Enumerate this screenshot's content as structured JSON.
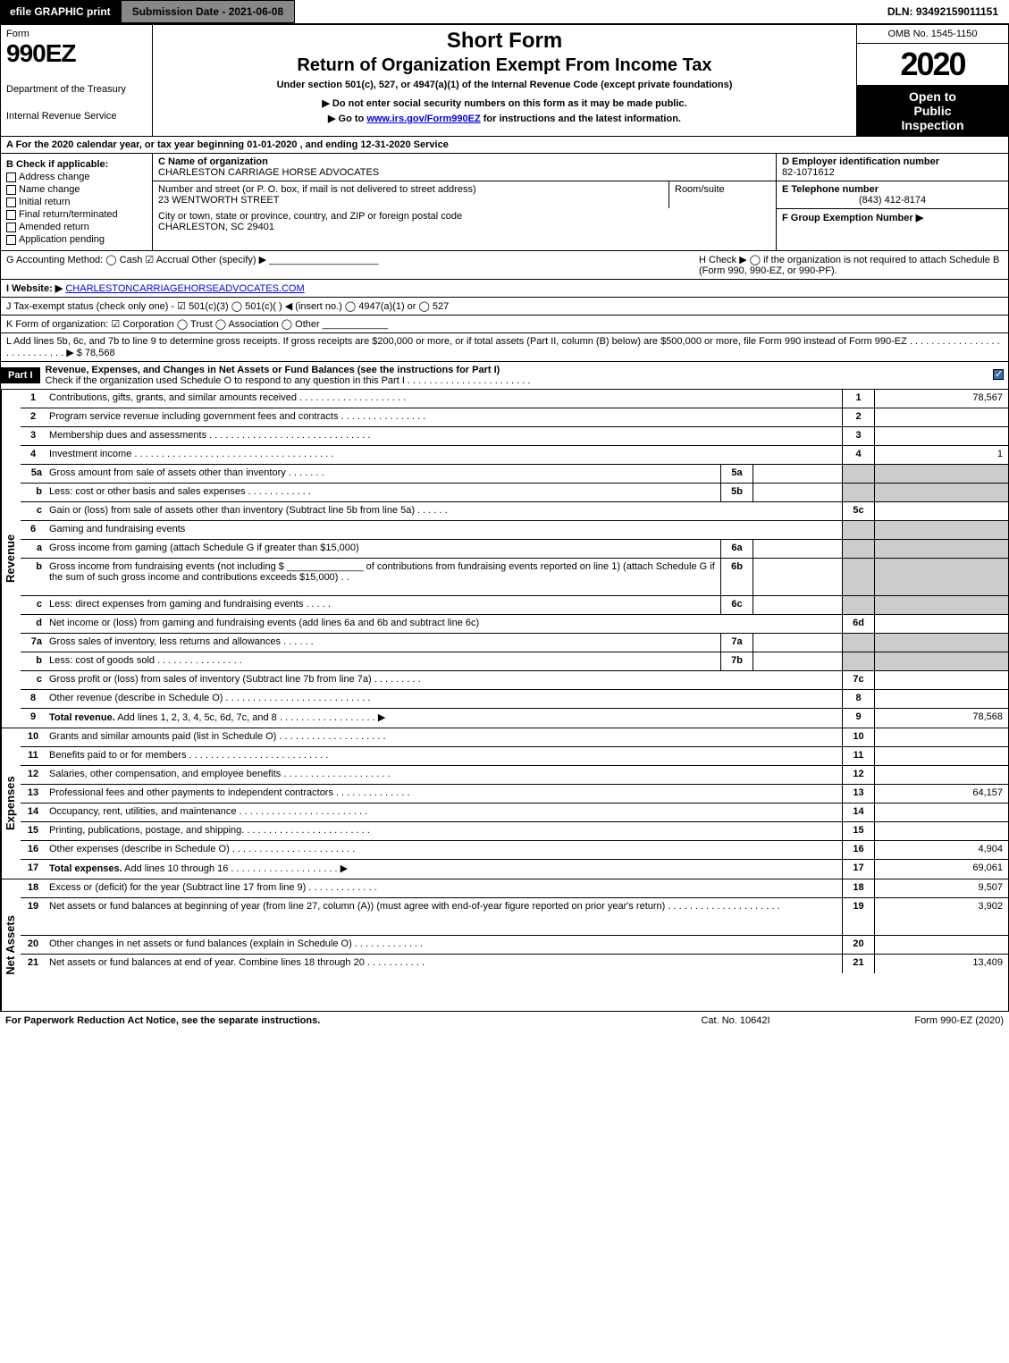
{
  "topbar": {
    "efile": "efile GRAPHIC print",
    "submission": "Submission Date - 2021-06-08",
    "dln": "DLN: 93492159011151"
  },
  "header": {
    "form_word": "Form",
    "form_no": "990EZ",
    "dept1": "Department of the Treasury",
    "dept2": "Internal Revenue Service",
    "title1": "Short Form",
    "title2": "Return of Organization Exempt From Income Tax",
    "title3": "Under section 501(c), 527, or 4947(a)(1) of the Internal Revenue Code (except private foundations)",
    "title4": "▶ Do not enter social security numbers on this form as it may be made public.",
    "title5_pre": "▶ Go to ",
    "title5_link": "www.irs.gov/Form990EZ",
    "title5_post": " for instructions and the latest information.",
    "omb": "OMB No. 1545-1150",
    "year": "2020",
    "open1": "Open to",
    "open2": "Public",
    "open3": "Inspection"
  },
  "lineA": "A For the 2020 calendar year, or tax year beginning 01-01-2020 , and ending 12-31-2020 Service",
  "colB": {
    "title": "B  Check if applicable:",
    "items": [
      "Address change",
      "Name change",
      "Initial return",
      "Final return/terminated",
      "Amended return",
      "Application pending"
    ]
  },
  "colC": {
    "c_label": "C Name of organization",
    "c_name": "CHARLESTON CARRIAGE HORSE ADVOCATES",
    "addr_label": "Number and street (or P. O. box, if mail is not delivered to street address)",
    "addr": "23 WENTWORTH STREET",
    "room_label": "Room/suite",
    "city_label": "City or town, state or province, country, and ZIP or foreign postal code",
    "city": "CHARLESTON, SC  29401"
  },
  "colDEF": {
    "d_label": "D Employer identification number",
    "d_val": "82-1071612",
    "e_label": "E Telephone number",
    "e_val": "(843) 412-8174",
    "f_label": "F Group Exemption Number   ▶"
  },
  "lineG": {
    "left": "G Accounting Method:   ◯ Cash   ☑ Accrual   Other (specify) ▶ ____________________",
    "h_label": "H  Check ▶  ◯  if the organization is not required to attach Schedule B (Form 990, 990-EZ, or 990-PF)."
  },
  "lineI_label": "I Website: ▶",
  "lineI_link": "CHARLESTONCARRIAGEHORSEADVOCATES.COM",
  "lineJ": "J Tax-exempt status (check only one) -  ☑ 501(c)(3)  ◯ 501(c)(  ) ◀ (insert no.)  ◯ 4947(a)(1) or  ◯ 527",
  "lineK": "K Form of organization:   ☑ Corporation   ◯ Trust   ◯ Association   ◯ Other  ____________",
  "lineL": "L Add lines 5b, 6c, and 7b to line 9 to determine gross receipts. If gross receipts are $200,000 or more, or if total assets (Part II, column (B) below) are $500,000 or more, file Form 990 instead of Form 990-EZ  .  .  .  .  .  .  .  .  .  .  .  .  .  .  .  .  .  .  .  .  .  .  .  .  .  .  .  .  ▶ $ 78,568",
  "partI": {
    "label": "Part I",
    "title": "Revenue, Expenses, and Changes in Net Assets or Fund Balances (see the instructions for Part I)",
    "subtitle": "Check if the organization used Schedule O to respond to any question in this Part I  .  .  .  .  .  .  .  .  .  .  .  .  .  .  .  .  .  .  .  .  .  .  ."
  },
  "sections": {
    "revenue": "Revenue",
    "expenses": "Expenses",
    "netassets": "Net Assets"
  },
  "rows": [
    {
      "n": "1",
      "d": "Contributions, gifts, grants, and similar amounts received  .  .  .  .  .  .  .  .  .  .  .  .  .  .  .  .  .  .  .  .",
      "num": "1",
      "v": "78,567"
    },
    {
      "n": "2",
      "d": "Program service revenue including government fees and contracts  .  .  .  .  .  .  .  .  .  .  .  .  .  .  .  .",
      "num": "2",
      "v": ""
    },
    {
      "n": "3",
      "d": "Membership dues and assessments  .  .  .  .  .  .  .  .  .  .  .  .  .  .  .  .  .  .  .  .  .  .  .  .  .  .  .  .  .  .",
      "num": "3",
      "v": ""
    },
    {
      "n": "4",
      "d": "Investment income  .  .  .  .  .  .  .  .  .  .  .  .  .  .  .  .  .  .  .  .  .  .  .  .  .  .  .  .  .  .  .  .  .  .  .  .  .",
      "num": "4",
      "v": "1"
    },
    {
      "n": "5a",
      "d": "Gross amount from sale of assets other than inventory  .  .  .  .  .  .  .",
      "mini": "5a",
      "minival": "",
      "shade": true
    },
    {
      "n": "b",
      "d": "Less: cost or other basis and sales expenses  .  .  .  .  .  .  .  .  .  .  .  .",
      "mini": "5b",
      "minival": "",
      "shade": true
    },
    {
      "n": "c",
      "d": "Gain or (loss) from sale of assets other than inventory (Subtract line 5b from line 5a)  .  .  .  .  .  .",
      "num": "5c",
      "v": ""
    },
    {
      "n": "6",
      "d": "Gaming and fundraising events",
      "shade": true
    },
    {
      "n": "a",
      "d": "Gross income from gaming (attach Schedule G if greater than $15,000)",
      "mini": "6a",
      "minival": "",
      "shade": true
    },
    {
      "n": "b",
      "d": "Gross income from fundraising events (not including $ ______________ of contributions from fundraising events reported on line 1) (attach Schedule G if the sum of such gross income and contributions exceeds $15,000)     .  .",
      "mini": "6b",
      "minival": "",
      "shade": true,
      "tall": true
    },
    {
      "n": "c",
      "d": "Less: direct expenses from gaming and fundraising events   .  .  .  .  .",
      "mini": "6c",
      "minival": "",
      "shade": true
    },
    {
      "n": "d",
      "d": "Net income or (loss) from gaming and fundraising events (add lines 6a and 6b and subtract line 6c)",
      "num": "6d",
      "v": ""
    },
    {
      "n": "7a",
      "d": "Gross sales of inventory, less returns and allowances  .  .  .  .  .  .",
      "mini": "7a",
      "minival": "",
      "shade": true
    },
    {
      "n": "b",
      "d": "Less: cost of goods sold        .  .  .  .  .  .  .  .  .  .  .  .  .  .  .  .",
      "mini": "7b",
      "minival": "",
      "shade": true
    },
    {
      "n": "c",
      "d": "Gross profit or (loss) from sales of inventory (Subtract line 7b from line 7a)  .  .  .  .  .  .  .  .  .",
      "num": "7c",
      "v": ""
    },
    {
      "n": "8",
      "d": "Other revenue (describe in Schedule O)  .  .  .  .  .  .  .  .  .  .  .  .  .  .  .  .  .  .  .  .  .  .  .  .  .  .  .",
      "num": "8",
      "v": ""
    },
    {
      "n": "9",
      "d": "Total revenue. Add lines 1, 2, 3, 4, 5c, 6d, 7c, and 8  .  .  .  .  .  .  .  .  .  .  .  .  .  .  .  .  .  .        ▶",
      "num": "9",
      "v": "78,568",
      "bold": true
    }
  ],
  "exp_rows": [
    {
      "n": "10",
      "d": "Grants and similar amounts paid (list in Schedule O)  .  .  .  .  .  .  .  .  .  .  .  .  .  .  .  .  .  .  .  .",
      "num": "10",
      "v": ""
    },
    {
      "n": "11",
      "d": "Benefits paid to or for members        .  .  .  .  .  .  .  .  .  .  .  .  .  .  .  .  .  .  .  .  .  .  .  .  .  .",
      "num": "11",
      "v": ""
    },
    {
      "n": "12",
      "d": "Salaries, other compensation, and employee benefits  .  .  .  .  .  .  .  .  .  .  .  .  .  .  .  .  .  .  .  .",
      "num": "12",
      "v": ""
    },
    {
      "n": "13",
      "d": "Professional fees and other payments to independent contractors  .  .  .  .  .  .  .  .  .  .  .  .  .  .",
      "num": "13",
      "v": "64,157"
    },
    {
      "n": "14",
      "d": "Occupancy, rent, utilities, and maintenance  .  .  .  .  .  .  .  .  .  .  .  .  .  .  .  .  .  .  .  .  .  .  .  .",
      "num": "14",
      "v": ""
    },
    {
      "n": "15",
      "d": "Printing, publications, postage, and shipping.  .  .  .  .  .  .  .  .  .  .  .  .  .  .  .  .  .  .  .  .  .  .  .",
      "num": "15",
      "v": ""
    },
    {
      "n": "16",
      "d": "Other expenses (describe in Schedule O)      .  .  .  .  .  .  .  .  .  .  .  .  .  .  .  .  .  .  .  .  .  .  .",
      "num": "16",
      "v": "4,904"
    },
    {
      "n": "17",
      "d": "Total expenses. Add lines 10 through 16      .  .  .  .  .  .  .  .  .  .  .  .  .  .  .  .  .  .  .  .       ▶",
      "num": "17",
      "v": "69,061",
      "bold": true
    }
  ],
  "na_rows": [
    {
      "n": "18",
      "d": "Excess or (deficit) for the year (Subtract line 17 from line 9)       .  .  .  .  .  .  .  .  .  .  .  .  .",
      "num": "18",
      "v": "9,507"
    },
    {
      "n": "19",
      "d": "Net assets or fund balances at beginning of year (from line 27, column (A)) (must agree with end-of-year figure reported on prior year's return)  .  .  .  .  .  .  .  .  .  .  .  .  .  .  .  .  .  .  .  .  .",
      "num": "19",
      "v": "3,902",
      "tall": true
    },
    {
      "n": "20",
      "d": "Other changes in net assets or fund balances (explain in Schedule O)  .  .  .  .  .  .  .  .  .  .  .  .  .",
      "num": "20",
      "v": ""
    },
    {
      "n": "21",
      "d": "Net assets or fund balances at end of year. Combine lines 18 through 20  .  .  .  .  .  .  .  .  .  .  .",
      "num": "21",
      "v": "13,409"
    }
  ],
  "footer": {
    "f1": "For Paperwork Reduction Act Notice, see the separate instructions.",
    "f2": "Cat. No. 10642I",
    "f3": "Form 990-EZ (2020)"
  }
}
